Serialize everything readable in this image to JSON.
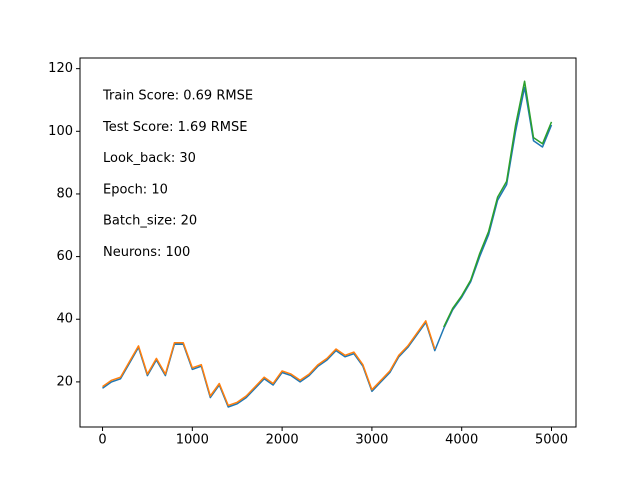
{
  "chart_data": {
    "type": "line",
    "annotations": [
      "Train Score: 0.69 RMSE",
      "Test Score: 1.69 RMSE",
      "Look_back: 30",
      "Epoch: 10",
      "Batch_size: 20",
      "Neurons: 100"
    ],
    "x": [
      0,
      100,
      200,
      300,
      400,
      500,
      600,
      700,
      800,
      900,
      1000,
      1100,
      1200,
      1300,
      1400,
      1500,
      1600,
      1700,
      1800,
      1900,
      2000,
      2100,
      2200,
      2300,
      2400,
      2500,
      2600,
      2700,
      2800,
      2900,
      3000,
      3100,
      3200,
      3300,
      3400,
      3500,
      3600,
      3700,
      3800,
      3900,
      4000,
      4100,
      4200,
      4300,
      4400,
      4500,
      4600,
      4700,
      4800,
      4900,
      5000
    ],
    "series": [
      {
        "color": "#1f77b4",
        "values": [
          18,
          20,
          21,
          26,
          31,
          22,
          27,
          22,
          32,
          32,
          24,
          25,
          15,
          19,
          12,
          13,
          15,
          18,
          21,
          19,
          23,
          22,
          20,
          22,
          25,
          27,
          30,
          28,
          29,
          25,
          17,
          20,
          23,
          28,
          31,
          35,
          39,
          30,
          37,
          43,
          47,
          52,
          60,
          67,
          78,
          83,
          100,
          114,
          97,
          95,
          102
        ]
      },
      {
        "color": "#ff7f0e",
        "values": [
          18.5,
          20.5,
          21.5,
          26.5,
          31.5,
          22.5,
          27.5,
          22.5,
          32.5,
          32.5,
          24.5,
          25.5,
          15.5,
          19.5,
          12.5,
          13.5,
          15.5,
          18.5,
          21.5,
          19.5,
          23.5,
          22.5,
          20.5,
          22.5,
          25.5,
          27.5,
          30.5,
          28.5,
          29.5,
          25.5,
          17.5,
          20.5,
          23.5,
          28.5,
          31.5,
          35.5,
          39.5,
          30.5,
          null,
          null,
          null,
          null,
          null,
          null,
          null,
          null,
          null,
          null,
          null,
          null,
          null
        ]
      },
      {
        "color": "#2ca02c",
        "values": [
          null,
          null,
          null,
          null,
          null,
          null,
          null,
          null,
          null,
          null,
          null,
          null,
          null,
          null,
          null,
          null,
          null,
          null,
          null,
          null,
          null,
          null,
          null,
          null,
          null,
          null,
          null,
          null,
          null,
          null,
          null,
          null,
          null,
          null,
          null,
          null,
          null,
          null,
          37.5,
          43.5,
          47.5,
          52.5,
          61,
          68,
          79,
          84,
          102,
          116,
          98,
          96,
          103
        ]
      }
    ],
    "xlim": [
      -251,
      5273
    ],
    "xticks": [
      0,
      1000,
      2000,
      3000,
      4000,
      5000
    ],
    "ylim": [
      5.6,
      123.4
    ],
    "yticks": [
      20,
      40,
      60,
      80,
      100,
      120
    ]
  }
}
